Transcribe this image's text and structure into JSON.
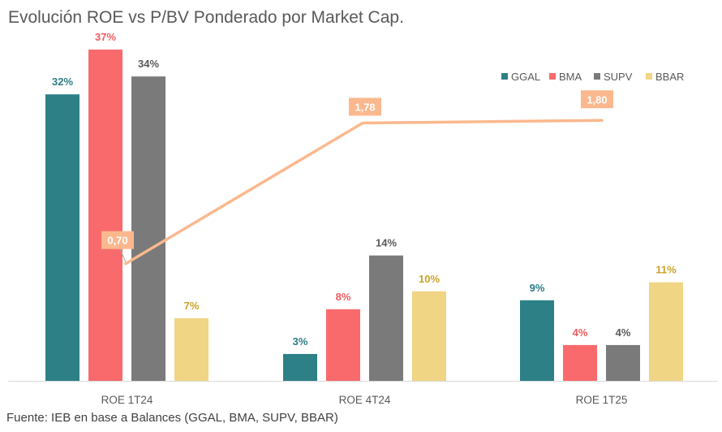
{
  "title": "Evolución ROE vs P/BV Ponderado por Market Cap.",
  "source": "Fuente: IEB en base a Balances (GGAL, BMA, SUPV, BBAR)",
  "chart_data": {
    "type": "bar",
    "categories": [
      "ROE 1T24",
      "ROE 4T24",
      "ROE 1T25"
    ],
    "series": [
      {
        "name": "GGAL",
        "values": [
          32,
          3,
          9
        ],
        "labels": [
          "32%",
          "3%",
          "9%"
        ],
        "color": "#2c8086",
        "label_color": "#2c7d86"
      },
      {
        "name": "BMA",
        "values": [
          37,
          8,
          4
        ],
        "labels": [
          "37%",
          "8%",
          "4%"
        ],
        "color": "#f96a6c",
        "label_color": "#f05a5e"
      },
      {
        "name": "SUPV",
        "values": [
          34,
          14,
          4
        ],
        "labels": [
          "34%",
          "14%",
          "4%"
        ],
        "color": "#7a7a7a",
        "label_color": "#595959"
      },
      {
        "name": "BBAR",
        "values": [
          7,
          10,
          11
        ],
        "labels": [
          "7%",
          "10%",
          "11%"
        ],
        "color": "#f0d585",
        "label_color": "#c9a227"
      }
    ],
    "line": {
      "name": "P/BV Ponderado",
      "values": [
        0.7,
        1.78,
        1.8
      ],
      "labels": [
        "0,70",
        "1,78",
        "1,80"
      ],
      "color": "#fbb88e"
    },
    "ylim": [
      0,
      40
    ],
    "line_ylim": [
      -0.2,
      2.55
    ],
    "legend_position": "top-right",
    "xlabel": "",
    "ylabel": ""
  }
}
